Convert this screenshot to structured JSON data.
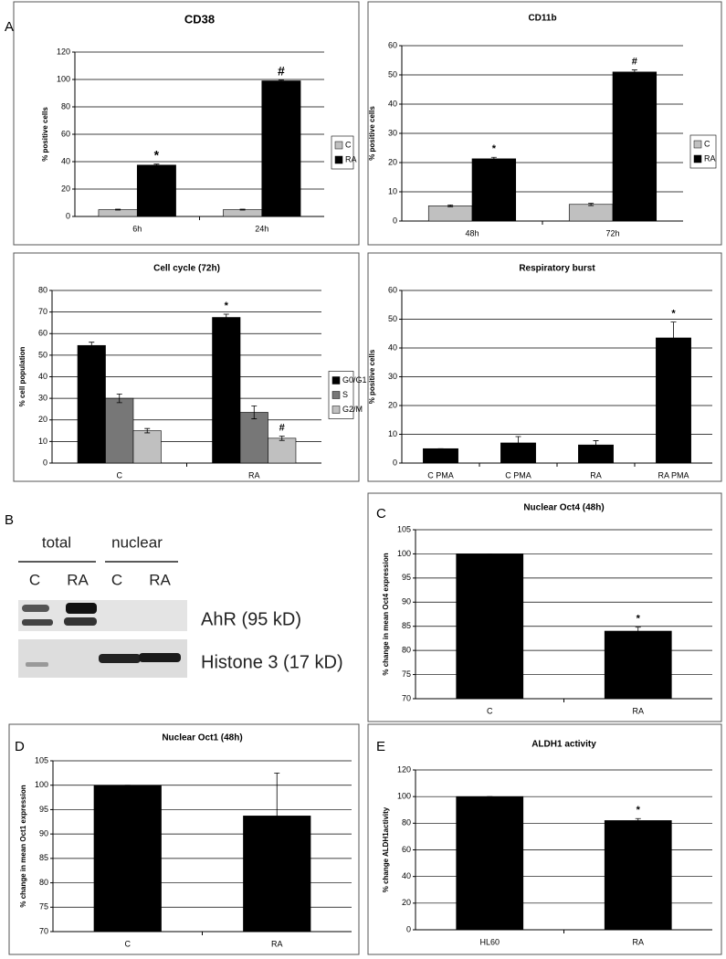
{
  "panels": [
    "A",
    "B",
    "C",
    "D",
    "E"
  ],
  "blot": {
    "header": [
      "total",
      "nuclear"
    ],
    "lanes": [
      "C",
      "RA",
      "C",
      "RA"
    ],
    "bands": [
      "AhR (95 kD)",
      "Histone 3 (17 kD)"
    ]
  },
  "chart_data": [
    {
      "type": "bar",
      "title": "CD38",
      "y_label": "% positive cells",
      "categories": [
        "6h",
        "24h"
      ],
      "series": [
        {
          "name": "C",
          "color": "#c0c0c0",
          "values": [
            5,
            5
          ],
          "errors": [
            0.3,
            0.3
          ],
          "significance": [
            null,
            null
          ]
        },
        {
          "name": "RA",
          "color": "#000000",
          "values": [
            37.5,
            99
          ],
          "errors": [
            0.7,
            0.5
          ],
          "significance": [
            "*",
            "#"
          ]
        }
      ],
      "ylim": [
        0,
        120
      ],
      "yticks": [
        0,
        20,
        40,
        60,
        80,
        100,
        120
      ],
      "grid": true,
      "legend": "right"
    },
    {
      "type": "bar",
      "title": "CD11b",
      "y_label": "% positive cells",
      "categories": [
        "48h",
        "72h"
      ],
      "series": [
        {
          "name": "C",
          "color": "#c0c0c0",
          "values": [
            5.2,
            5.7
          ],
          "errors": [
            0.3,
            0.4
          ],
          "significance": [
            null,
            null
          ]
        },
        {
          "name": "RA",
          "color": "#000000",
          "values": [
            21.3,
            51
          ],
          "errors": [
            0.5,
            0.7
          ],
          "significance": [
            "*",
            "#"
          ]
        }
      ],
      "ylim": [
        0,
        60
      ],
      "yticks": [
        0,
        10,
        20,
        30,
        40,
        50,
        60
      ],
      "grid": true,
      "legend": "right"
    },
    {
      "type": "bar",
      "title": "Cell cycle (72h)",
      "y_label": "% cell population",
      "categories": [
        "C",
        "RA"
      ],
      "series": [
        {
          "name": "G0/G1",
          "color": "#000000",
          "values": [
            54.5,
            67.5
          ],
          "errors": [
            1.5,
            1.5
          ],
          "significance": [
            null,
            "*"
          ]
        },
        {
          "name": "S",
          "color": "#777777",
          "values": [
            30,
            23.5
          ],
          "errors": [
            2,
            3
          ],
          "significance": [
            null,
            null
          ]
        },
        {
          "name": "G2/M",
          "color": "#c0c0c0",
          "values": [
            15,
            11.5
          ],
          "errors": [
            1,
            1
          ],
          "significance": [
            null,
            "#"
          ]
        }
      ],
      "ylim": [
        0,
        80
      ],
      "yticks": [
        0,
        10,
        20,
        30,
        40,
        50,
        60,
        70,
        80
      ],
      "grid": true,
      "legend": "right"
    },
    {
      "type": "bar",
      "title": "Respiratory burst",
      "y_label": "% positive cells",
      "categories": [
        "C PMA",
        "C PMA",
        "RA",
        "RA PMA"
      ],
      "values": [
        5,
        7,
        6.3,
        43.5
      ],
      "errors": [
        0,
        2.2,
        1.5,
        5.5
      ],
      "significance": [
        null,
        null,
        null,
        "*"
      ],
      "color": "#000000",
      "ylim": [
        0,
        60
      ],
      "yticks": [
        0,
        10,
        20,
        30,
        40,
        50,
        60
      ],
      "grid": true
    },
    {
      "type": "bar",
      "title": "Nuclear Oct4 (48h)",
      "y_label": "% change in mean Oct4 expression",
      "categories": [
        "C",
        "RA"
      ],
      "values": [
        100,
        84
      ],
      "errors": [
        0,
        0.8
      ],
      "significance": [
        null,
        "*"
      ],
      "color": "#000000",
      "ylim": [
        70,
        105
      ],
      "yticks": [
        70,
        75,
        80,
        85,
        90,
        95,
        100,
        105
      ],
      "grid": true
    },
    {
      "type": "bar",
      "title": "Nuclear Oct1 (48h)",
      "y_label": "% change in mean Oct1 expression",
      "categories": [
        "C",
        "RA"
      ],
      "values": [
        100,
        93.7
      ],
      "errors": [
        0,
        8.8
      ],
      "significance": [
        null,
        null
      ],
      "color": "#000000",
      "ylim": [
        70,
        105
      ],
      "yticks": [
        70,
        75,
        80,
        85,
        90,
        95,
        100,
        105
      ],
      "grid": true
    },
    {
      "type": "bar",
      "title": "ALDH1 activity",
      "y_label": "% change ALDH1activity",
      "categories": [
        "HL60",
        "RA"
      ],
      "values": [
        100,
        82
      ],
      "errors": [
        0,
        1.5
      ],
      "significance": [
        null,
        "*"
      ],
      "color": "#000000",
      "ylim": [
        0,
        120
      ],
      "yticks": [
        0,
        20,
        40,
        60,
        80,
        100,
        120
      ],
      "grid": true
    }
  ]
}
